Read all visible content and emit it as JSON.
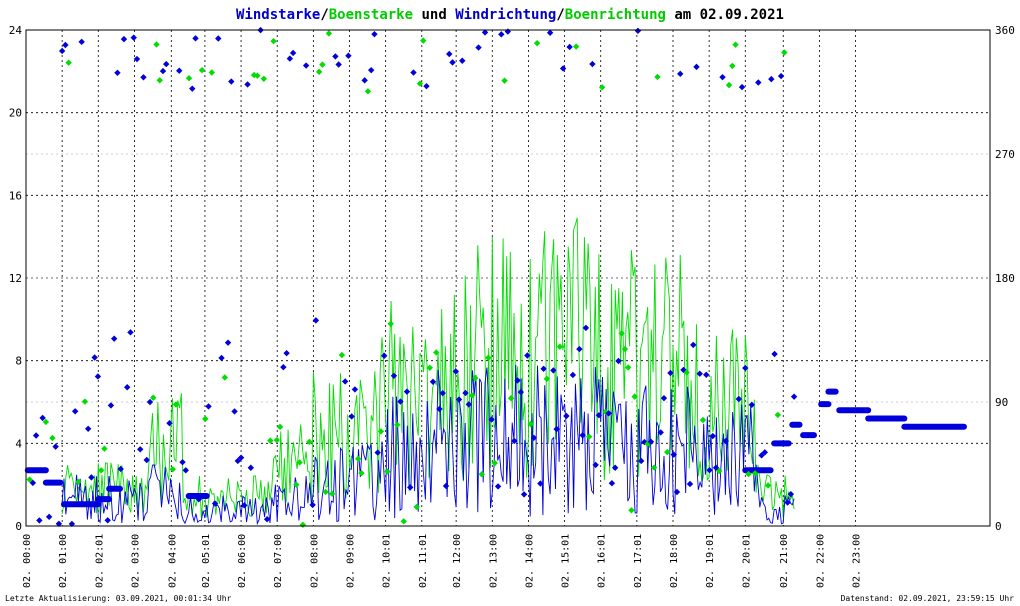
{
  "chart_data": {
    "type": "scatter",
    "title": {
      "parts": [
        {
          "text": "Windstarke",
          "color": "#0000cc"
        },
        {
          "text": "/",
          "color": "#000000"
        },
        {
          "text": "Boenstarke",
          "color": "#00cc00"
        },
        {
          "text": " und ",
          "color": "#000000"
        },
        {
          "text": "Windrichtung",
          "color": "#0000cc"
        },
        {
          "text": "/",
          "color": "#000000"
        },
        {
          "text": "Boenrichtung",
          "color": "#00cc00"
        },
        {
          "text": " am 02.09.2021",
          "color": "#000000"
        }
      ]
    },
    "left_axis": {
      "range": [
        0,
        24
      ],
      "ticks": [
        "0",
        "4",
        "8",
        "12",
        "16",
        "20",
        "24"
      ]
    },
    "right_axis": {
      "range": [
        0,
        360
      ],
      "ticks": [
        "0",
        "90",
        "180",
        "270",
        "360"
      ]
    },
    "x_axis": {
      "range_hours": [
        0,
        26.67
      ],
      "ticks": [
        {
          "h": 0.0,
          "label": "02. 00:00"
        },
        {
          "h": 1.0,
          "label": "02. 01:00"
        },
        {
          "h": 2.0,
          "label": "02. 02:01"
        },
        {
          "h": 3.0,
          "label": "02. 03:00"
        },
        {
          "h": 4.02,
          "label": "02. 04:00"
        },
        {
          "h": 4.95,
          "label": "02. 05:01"
        },
        {
          "h": 5.95,
          "label": "02. 06:00"
        },
        {
          "h": 6.95,
          "label": "02. 07:00"
        },
        {
          "h": 7.95,
          "label": "02. 08:00"
        },
        {
          "h": 8.95,
          "label": "02. 09:00"
        },
        {
          "h": 9.95,
          "label": "02. 10:01"
        },
        {
          "h": 10.95,
          "label": "02. 11:01"
        },
        {
          "h": 11.9,
          "label": "02. 12:00"
        },
        {
          "h": 12.9,
          "label": "02. 13:00"
        },
        {
          "h": 13.9,
          "label": "02. 14:00"
        },
        {
          "h": 14.9,
          "label": "02. 15:01"
        },
        {
          "h": 15.9,
          "label": "02. 16:01"
        },
        {
          "h": 16.9,
          "label": "02. 17:01"
        },
        {
          "h": 17.9,
          "label": "02. 18:00"
        },
        {
          "h": 18.9,
          "label": "02. 19:01"
        },
        {
          "h": 19.9,
          "label": "02. 20:01"
        },
        {
          "h": 20.95,
          "label": "02. 21:00"
        },
        {
          "h": 21.95,
          "label": "02. 22:00"
        },
        {
          "h": 22.95,
          "label": "02. 23:00"
        }
      ]
    },
    "grid": true,
    "series": [
      {
        "name": "Windstarke",
        "color": "#0000dd",
        "style": "line",
        "axis": "left"
      },
      {
        "name": "Boenstarke",
        "color": "#00dd00",
        "style": "line",
        "axis": "left"
      },
      {
        "name": "Windrichtung",
        "color": "#0000dd",
        "style": "points",
        "axis": "right"
      },
      {
        "name": "Boenrichtung",
        "color": "#00dd00",
        "style": "points",
        "axis": "right"
      }
    ],
    "plateaus": [
      {
        "start": 0.05,
        "end": 0.55,
        "value": 2.7
      },
      {
        "start": 0.55,
        "end": 0.95,
        "value": 2.1
      },
      {
        "start": 1.05,
        "end": 2.0,
        "value": 1.05
      },
      {
        "start": 2.0,
        "end": 2.3,
        "value": 1.3
      },
      {
        "start": 2.3,
        "end": 2.6,
        "value": 1.8
      },
      {
        "start": 4.5,
        "end": 5.0,
        "value": 1.45
      },
      {
        "start": 19.9,
        "end": 20.6,
        "value": 2.7
      },
      {
        "start": 20.7,
        "end": 21.1,
        "value": 4.0
      },
      {
        "start": 21.2,
        "end": 21.4,
        "value": 4.9
      },
      {
        "start": 21.5,
        "end": 21.8,
        "value": 4.4
      },
      {
        "start": 22.0,
        "end": 22.2,
        "value": 5.9
      },
      {
        "start": 22.2,
        "end": 22.4,
        "value": 6.5
      },
      {
        "start": 22.5,
        "end": 23.3,
        "value": 5.6
      },
      {
        "start": 23.3,
        "end": 24.3,
        "value": 5.2
      },
      {
        "start": 24.3,
        "end": 25.95,
        "value": 4.8
      }
    ]
  },
  "footer": {
    "left": "Letzte Aktualisierung: 03.09.2021, 00:01:34 Uhr",
    "right": "Datenstand: 02.09.2021, 23:59:15 Uhr"
  }
}
